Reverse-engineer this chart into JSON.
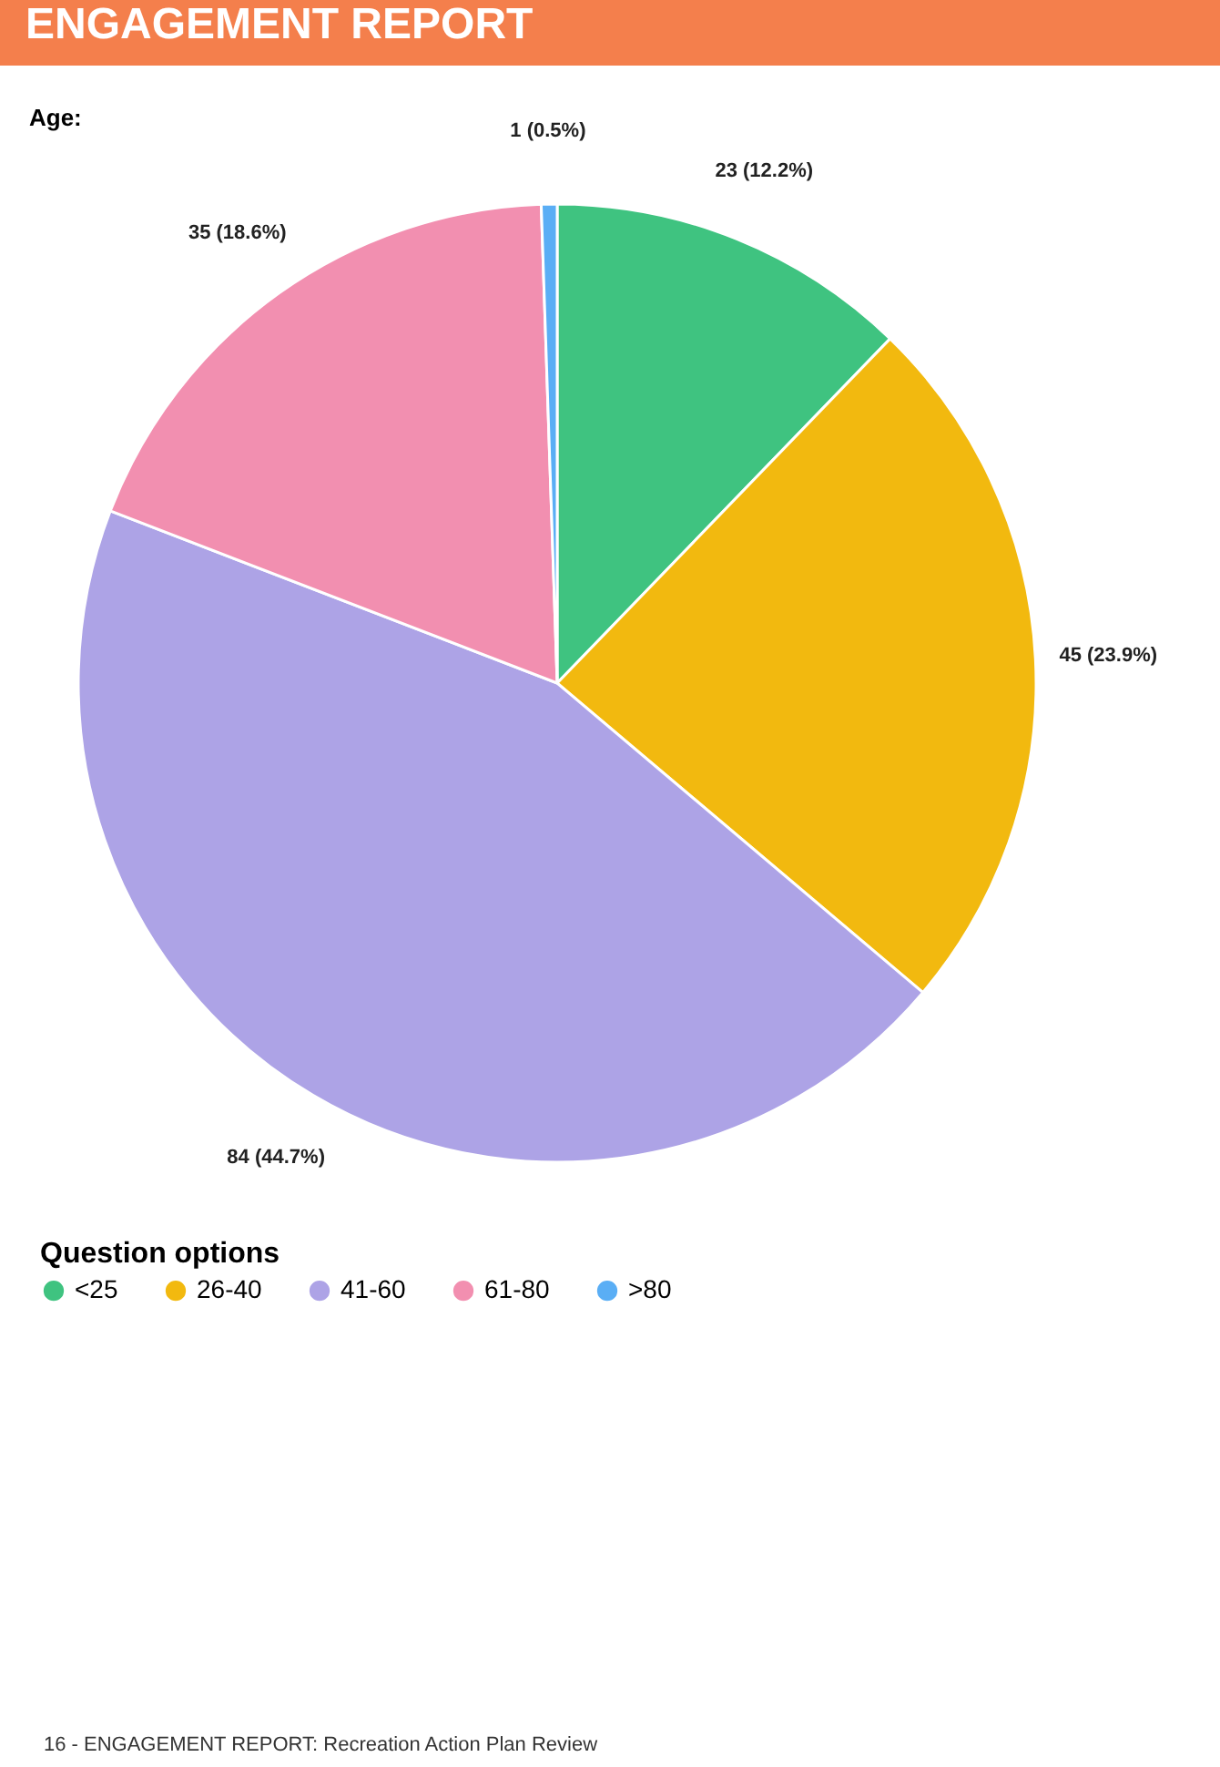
{
  "chart_data": {
    "type": "pie",
    "title": "ENGAGEMENT REPORT",
    "subtitle": "Age:",
    "legend_title": "Question options",
    "categories": [
      "<25",
      "26-40",
      "41-60",
      "61-80",
      ">80"
    ],
    "values": [
      23,
      45,
      84,
      35,
      1
    ],
    "colors": [
      "#3fc380",
      "#f2b90f",
      "#ada3e6",
      "#f28fb0",
      "#5aaef5"
    ],
    "value_labels": [
      "23 (12.2%)",
      "45 (23.9%)",
      "84 (44.7%)",
      "35 (18.6%)",
      "1 (0.5%)"
    ],
    "legend": "bottom left",
    "annotations": [
      "16 - ENGAGEMENT REPORT: Recreation Action Plan Review"
    ]
  }
}
